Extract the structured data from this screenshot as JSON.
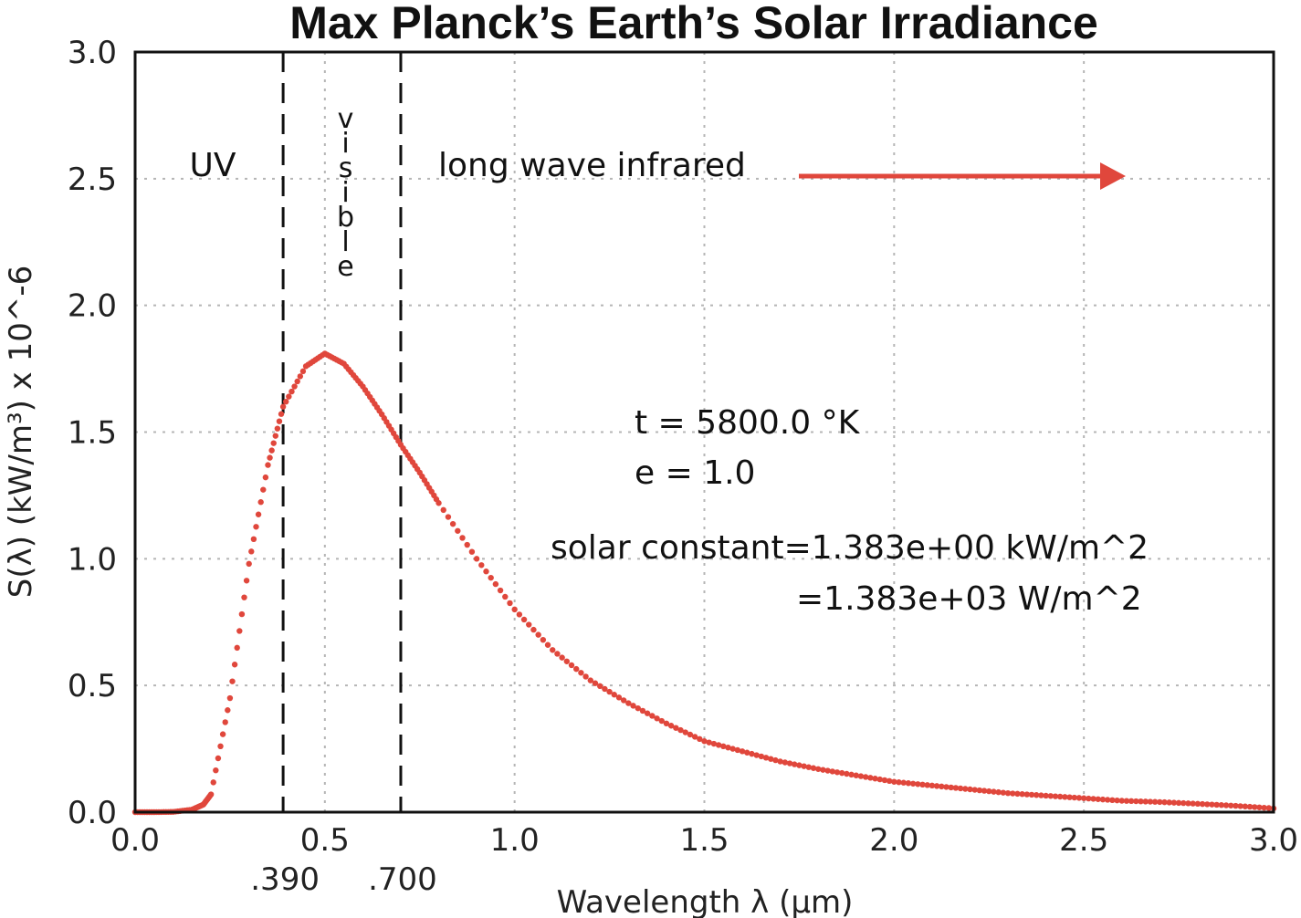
{
  "chart_data": {
    "type": "scatter",
    "title": "Max Planck’s Earth’s Solar Irradiance",
    "xlabel": "Wavelength λ (μm)",
    "ylabel": "S(λ) (kW/m³) x 10^-6",
    "xlim": [
      0.0,
      3.0
    ],
    "ylim": [
      0.0,
      3.0
    ],
    "x_ticks": [
      "0.0",
      "0.5",
      "1.0",
      "1.5",
      "2.0",
      "2.5",
      "3.0"
    ],
    "y_ticks": [
      "0.0",
      "0.5",
      "1.0",
      "1.5",
      "2.0",
      "2.5",
      "3.0"
    ],
    "grid": true,
    "vertical_markers": [
      {
        "x": 0.39,
        "label": ".390"
      },
      {
        "x": 0.7,
        "label": ".700"
      }
    ],
    "region_labels": {
      "uv": "UV",
      "visible": [
        "v",
        "i",
        "s",
        "i",
        "b",
        "l",
        "e"
      ],
      "infrared": "long wave infrared"
    },
    "annotations": {
      "temperature": "t =  5800.0  °K",
      "emissivity": "e = 1.0",
      "solar_constant_kw": "solar constant=1.383e+00    kW/m^2",
      "solar_constant_w": "=1.383e+03      W/m^2"
    },
    "series_color": "#e0473c",
    "series": [
      {
        "temperature_K": 5800.0,
        "emissivity": 1.0,
        "x": [
          0.0,
          0.05,
          0.1,
          0.15,
          0.18,
          0.2,
          0.25,
          0.3,
          0.35,
          0.39,
          0.45,
          0.5,
          0.55,
          0.6,
          0.65,
          0.7,
          0.75,
          0.8,
          0.9,
          1.0,
          1.1,
          1.2,
          1.3,
          1.4,
          1.5,
          1.6,
          1.7,
          1.8,
          1.9,
          2.0,
          2.1,
          2.2,
          2.3,
          2.4,
          2.5,
          2.6,
          2.7,
          2.8,
          2.9,
          3.0
        ],
        "y": [
          0.0,
          0.0,
          0.001,
          0.01,
          0.03,
          0.07,
          0.45,
          0.98,
          1.37,
          1.6,
          1.76,
          1.81,
          1.77,
          1.68,
          1.57,
          1.45,
          1.34,
          1.22,
          1.0,
          0.8,
          0.64,
          0.52,
          0.43,
          0.35,
          0.28,
          0.24,
          0.2,
          0.17,
          0.145,
          0.12,
          0.105,
          0.09,
          0.075,
          0.065,
          0.055,
          0.045,
          0.04,
          0.033,
          0.025,
          0.015
        ]
      }
    ]
  }
}
